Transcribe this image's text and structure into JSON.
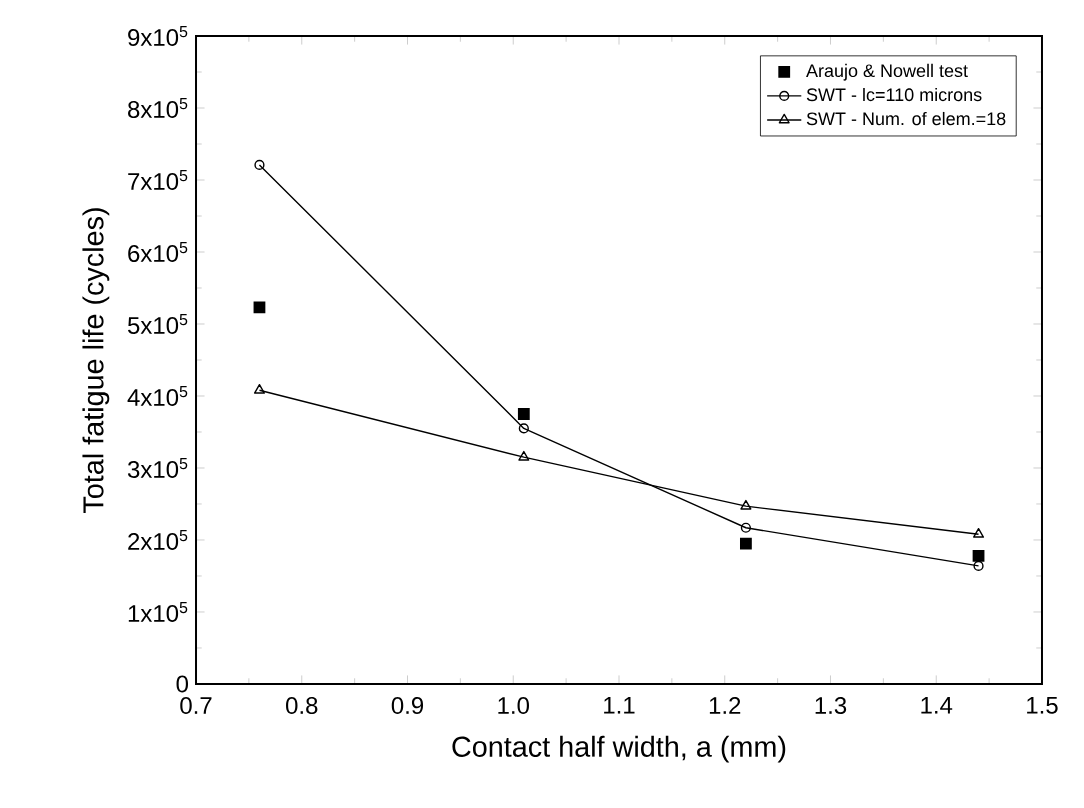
{
  "chart_data": {
    "type": "line",
    "xlabel": "Contact half width, a (mm)",
    "ylabel": "Total fatigue life (cycles)",
    "x": [
      0.76,
      1.01,
      1.22,
      1.44
    ],
    "series": [
      {
        "name": "Araujo & Nowell test",
        "type": "scatter",
        "marker": "square",
        "color": "#000000",
        "values": [
          523000,
          375000,
          195000,
          178000
        ]
      },
      {
        "name": "SWT - lc=110 microns",
        "marker": "circle",
        "color": "#000000",
        "values": [
          721000,
          355000,
          217000,
          164000
        ]
      },
      {
        "name": "SWT - Num. of elem.=18",
        "marker": "triangle",
        "color": "#000000",
        "values": [
          408000,
          315000,
          247000,
          208000
        ]
      }
    ],
    "xlim": [
      0.7,
      1.5
    ],
    "xticks": [
      0.7,
      0.8,
      0.9,
      {
        "value": 1,
        "label": "1.0"
      },
      1.1,
      1.2,
      1.3,
      1.4,
      1.5
    ],
    "ylim": [
      0,
      900000
    ],
    "yticks": [
      0,
      {
        "value": 100000,
        "label": "1x10$^{5}$"
      },
      {
        "value": 200000,
        "label": "2x10$^{5}$"
      },
      {
        "value": 300000,
        "label": "3x10$^{5}$"
      },
      {
        "value": 400000,
        "label": "4x10$^{5}$"
      },
      {
        "value": 500000,
        "label": "5x10$^{5}$"
      },
      {
        "value": 600000,
        "label": "6x10$^{5}$"
      },
      {
        "value": 700000,
        "label": "7x10$^{5}$"
      },
      {
        "value": 800000,
        "label": "8x10$^{5}$"
      },
      {
        "value": 900000,
        "label": "9x10$^{5}$"
      }
    ],
    "legend": "top right",
    "grid": false
  }
}
